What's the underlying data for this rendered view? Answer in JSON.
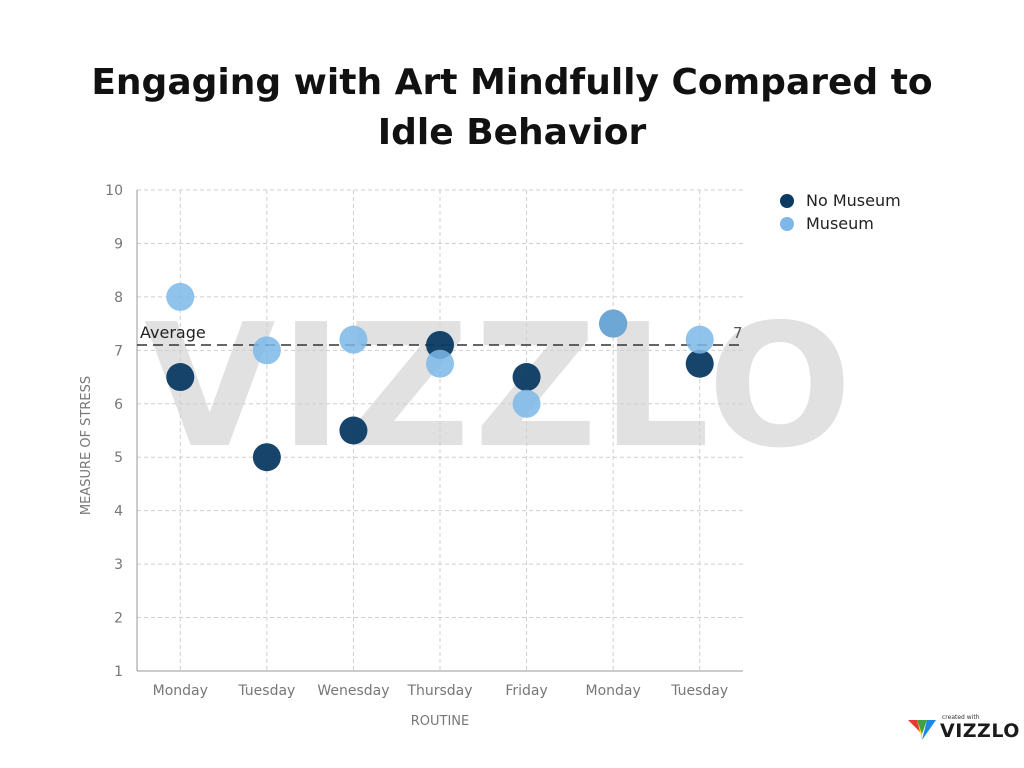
{
  "title": "Engaging with Art Mindfully Compared to Idle Behavior",
  "watermark": "VIZZLO",
  "brand": {
    "small": "created with",
    "name": "VIZZLO"
  },
  "colors": {
    "no_museum": "#0b3a63",
    "museum": "#7db8e8",
    "grid": "#cfcfcf",
    "axis": "#999999",
    "tick_text": "#777777",
    "average_line": "#333333",
    "watermark": "#e1e1e1"
  },
  "chart_data": {
    "type": "scatter",
    "title": "Engaging with Art Mindfully Compared to Idle Behavior",
    "xlabel": "ROUTINE",
    "ylabel": "MEASURE OF STRESS",
    "categories": [
      "Monday",
      "Tuesday",
      "Wenesday",
      "Thursday",
      "Friday",
      "Monday",
      "Tuesday"
    ],
    "ylim": [
      1,
      10
    ],
    "yticks": [
      1,
      2,
      3,
      4,
      5,
      6,
      7,
      8,
      9,
      10
    ],
    "grid": true,
    "legend_position": "top-right",
    "series": [
      {
        "name": "No Museum",
        "values": [
          6.5,
          5,
          5.5,
          7.1,
          6.5,
          7.5,
          6.75
        ]
      },
      {
        "name": "Museum",
        "values": [
          8,
          7,
          7.2,
          6.75,
          6,
          7.5,
          7.2
        ]
      }
    ],
    "reference_line": {
      "label": "Average",
      "value": 7.1,
      "value_label": "7"
    }
  }
}
